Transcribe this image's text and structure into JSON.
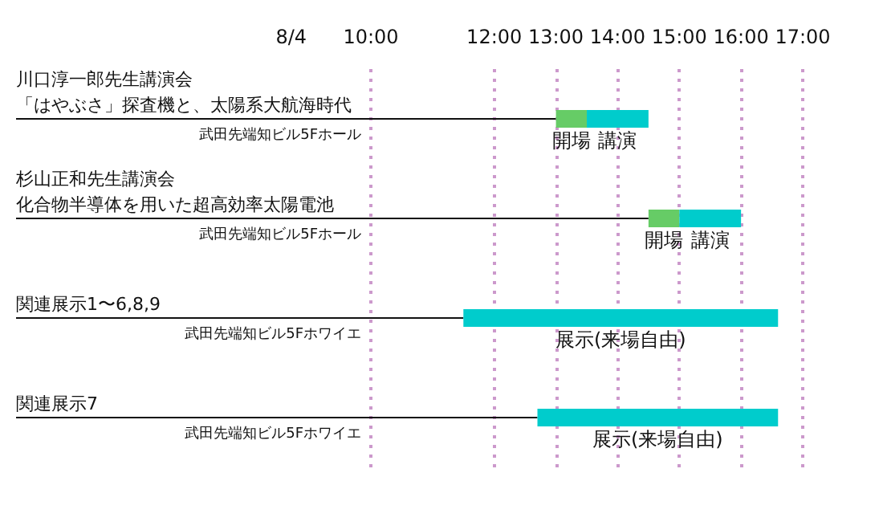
{
  "chart_data": {
    "type": "bar",
    "orientation": "horizontal",
    "categories": [
      "「はやぶさ」探査機と、太陽系大航海時代",
      "化合物半導体を用いた超高効率太陽電池",
      "関連展示1〜6,8,9",
      "関連展示7"
    ],
    "annotations": [
      "川口淳一郎先生講演会",
      "武田先端知ビル5Fホール",
      "杉山正和先生講演会",
      "武田先端知ビル5Fホール",
      "武田先端知ビル5Fホワイエ",
      "武田先端知ビル5Fホワイエ"
    ],
    "xlabel": "8/4",
    "series": [
      {
        "color": "#66cc66",
        "base": [
          13,
          14.5,
          null,
          null
        ],
        "values": [
          0.5,
          0.5,
          null,
          null
        ],
        "value_labels": [
          "開場",
          "開場",
          null,
          null
        ]
      },
      {
        "color": "#00cccc",
        "base": [
          13.5,
          15,
          11.5,
          12.7
        ],
        "values": [
          1,
          1,
          5.1,
          3.9
        ],
        "value_labels": [
          "講演",
          "講演",
          "展示(来場自由)",
          "展示(来場自由)"
        ]
      }
    ],
    "xlim": [
      10,
      17
    ],
    "xticks": [
      {
        "value": 10,
        "label": "10:00"
      },
      {
        "value": 12,
        "label": "12:00"
      },
      {
        "value": 13,
        "label": "13:00"
      },
      {
        "value": 14,
        "label": "14:00"
      },
      {
        "value": 15,
        "label": "15:00"
      },
      {
        "value": 16,
        "label": "16:00"
      },
      {
        "value": 17,
        "label": "17:00"
      }
    ],
    "grid": "x"
  }
}
